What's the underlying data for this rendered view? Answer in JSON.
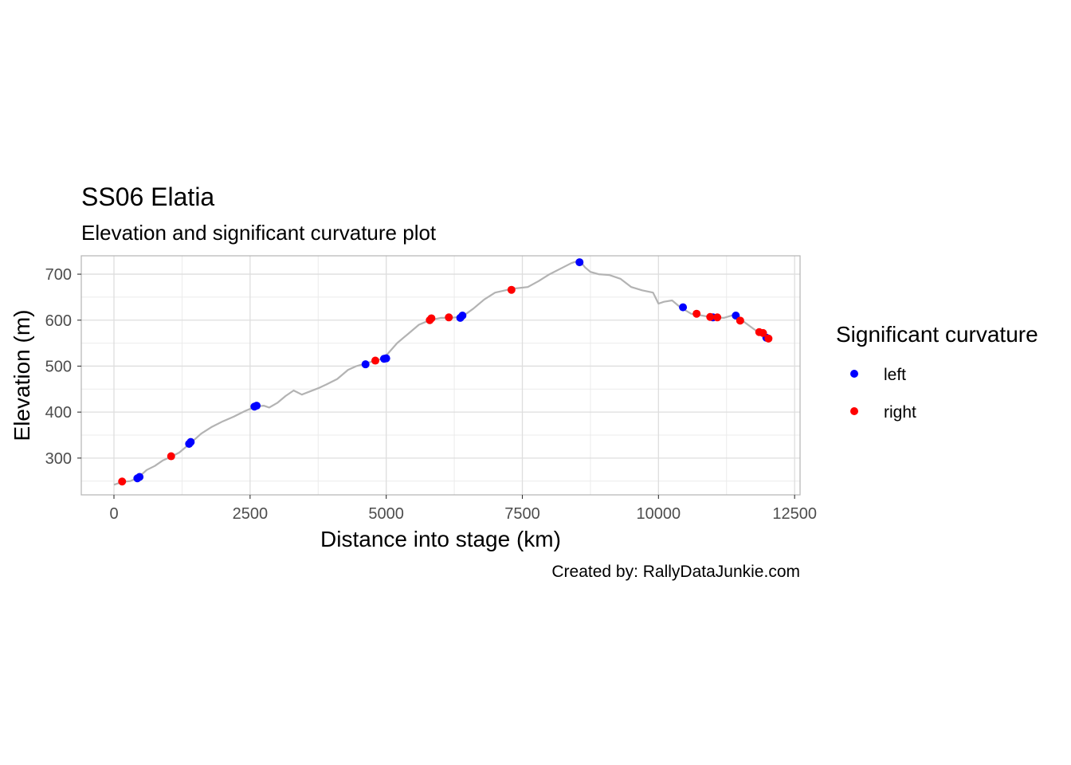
{
  "chart_data": {
    "type": "scatter",
    "title": "SS06 Elatia",
    "subtitle": "Elevation and significant curvature plot",
    "xlabel": "Distance into stage (km)",
    "ylabel": "Elevation (m)",
    "caption": "Created by: RallyDataJunkie.com",
    "xlim": [
      -600,
      12600
    ],
    "ylim": [
      220,
      740
    ],
    "x_ticks": [
      0,
      2500,
      5000,
      7500,
      10000,
      12500
    ],
    "x_tick_labels": [
      "0",
      "2500",
      "5000",
      "7500",
      "10000",
      "12500"
    ],
    "y_ticks": [
      300,
      400,
      500,
      600,
      700
    ],
    "y_tick_labels": [
      "300",
      "400",
      "500",
      "600",
      "700"
    ],
    "x_minor": [
      1250,
      3750,
      6250,
      8750,
      11250
    ],
    "y_minor": [
      250,
      350,
      450,
      550,
      650
    ],
    "grid": true,
    "legend": {
      "title": "Significant curvature",
      "position": "right",
      "entries": [
        {
          "label": "left",
          "color": "#0000ff"
        },
        {
          "label": "right",
          "color": "#ff0000"
        }
      ]
    },
    "elevation_line": {
      "color": "#b3b3b3",
      "x": [
        0,
        150,
        300,
        450,
        600,
        750,
        900,
        1050,
        1200,
        1400,
        1600,
        1800,
        2000,
        2200,
        2400,
        2600,
        2750,
        2850,
        3000,
        3150,
        3300,
        3450,
        3600,
        3750,
        3900,
        4100,
        4300,
        4450,
        4600,
        4800,
        4950,
        5050,
        5200,
        5400,
        5600,
        5800,
        6000,
        6200,
        6400,
        6600,
        6800,
        7000,
        7300,
        7600,
        7800,
        8000,
        8200,
        8400,
        8550,
        8650,
        8750,
        8900,
        9100,
        9300,
        9500,
        9700,
        9900,
        10000,
        10100,
        10250,
        10400,
        10600,
        10800,
        11000,
        11200,
        11400,
        11550,
        11700,
        11850,
        12000
      ],
      "y": [
        242,
        248,
        250,
        258,
        274,
        283,
        295,
        303,
        312,
        332,
        353,
        368,
        380,
        390,
        402,
        412,
        414,
        410,
        420,
        435,
        447,
        438,
        445,
        452,
        460,
        472,
        492,
        500,
        505,
        512,
        517,
        530,
        550,
        570,
        590,
        600,
        605,
        605,
        608,
        625,
        645,
        660,
        668,
        672,
        685,
        700,
        712,
        724,
        730,
        715,
        705,
        700,
        698,
        690,
        672,
        665,
        660,
        636,
        640,
        643,
        628,
        614,
        610,
        606,
        605,
        612,
        598,
        585,
        572,
        558
      ]
    },
    "series": [
      {
        "name": "left",
        "color": "#0000ff",
        "x": [
          430,
          470,
          1380,
          1410,
          2580,
          2620,
          4620,
          4960,
          5000,
          6360,
          6400,
          8550,
          10450,
          11000,
          11420,
          11980
        ],
        "y": [
          256,
          259,
          331,
          335,
          412,
          414,
          504,
          516,
          517,
          605,
          610,
          726,
          628,
          606,
          610,
          562
        ]
      },
      {
        "name": "right",
        "color": "#ff0000",
        "x": [
          150,
          1050,
          4800,
          5800,
          5830,
          6150,
          7300,
          10700,
          10950,
          11080,
          11500,
          11850,
          11920,
          12020
        ],
        "y": [
          249,
          304,
          512,
          600,
          604,
          606,
          666,
          614,
          607,
          606,
          599,
          574,
          572,
          560
        ]
      }
    ]
  }
}
